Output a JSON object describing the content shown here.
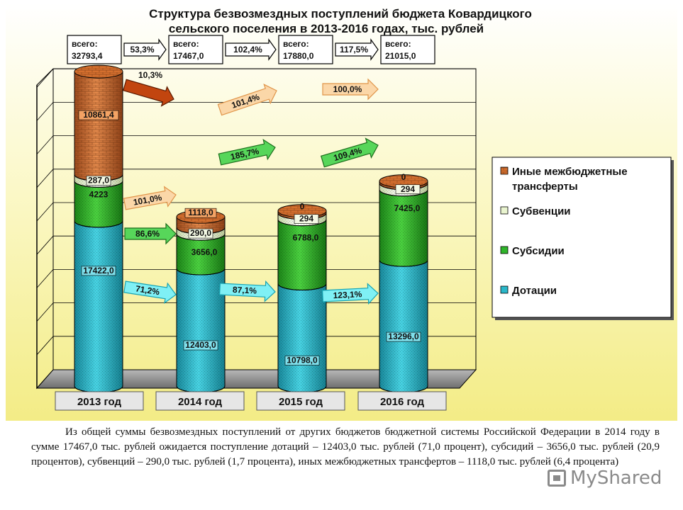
{
  "chart_data": {
    "type": "bar",
    "stacked": true,
    "title_line1": "Структура безвозмездных поступлений бюджета Ковардицкого",
    "title_line2": "сельского поселения в 2013-2016 годах, тыс. рублей",
    "categories": [
      "2013 год",
      "2014 год",
      "2015 год",
      "2016 год"
    ],
    "ylim": [
      0,
      35000
    ],
    "series": [
      {
        "name": "Дотации",
        "key": "dot",
        "values": [
          17422.0,
          12403.0,
          10798.0,
          13296.0
        ],
        "labels": [
          "17422,0",
          "12403,0",
          "10798,0",
          "13296,0"
        ],
        "color": "#2ab7c9"
      },
      {
        "name": "Субсидии",
        "key": "sub",
        "values": [
          4223,
          3656.0,
          6788.0,
          7425.0
        ],
        "labels": [
          "4223",
          "3656,0",
          "6788,0",
          "7425,0"
        ],
        "color": "#2fb52a"
      },
      {
        "name": "Субвенции",
        "key": "subv",
        "values": [
          287.0,
          290.0,
          294,
          294
        ],
        "labels": [
          "287,0",
          "290,0",
          "294",
          "294"
        ],
        "color": "#e9f4cf"
      },
      {
        "name": "Иные межбюджетные трансферты",
        "key": "other",
        "values": [
          10861.4,
          1118.0,
          0,
          0
        ],
        "labels": [
          "10861,4",
          "1118,0",
          "0",
          "0"
        ],
        "color": "#d46f2e"
      }
    ],
    "legend": {
      "position": "right",
      "entries": [
        "Иные межбюджетные",
        "трансферты",
        "Субвенции",
        "Субсидии",
        "Дотации"
      ]
    },
    "totals": [
      {
        "label": "всего:",
        "value": "32793,4"
      },
      {
        "label": "всего:",
        "value": "17467,0"
      },
      {
        "label": "всего:",
        "value": "17880,0"
      },
      {
        "label": "всего:",
        "value": "21015,0"
      }
    ],
    "total_growth": [
      "53,3%",
      "102,4%",
      "117,5%"
    ],
    "growth_arrows": {
      "other": [
        "10,3%"
      ],
      "subv": [
        "101,0%",
        "101,4%",
        "100,0%"
      ],
      "sub": [
        "86,6%",
        "185,7%",
        "109,4%"
      ],
      "dot": [
        "71,2%",
        "87,1%",
        "123,1%"
      ]
    },
    "colors": {
      "plot_bg_top": "#ffffff",
      "plot_bg_bottom": "#f4ee8a",
      "frame": "#000000"
    }
  },
  "caption": "Из общей суммы безвозмездных поступлений от других бюджетов бюджетной системы Российской Федерации в 2014 году в сумме 17467,0 тыс. рублей ожидается поступление дотаций – 12403,0 тыс. рублей (71,0 процент), субсидий – 3656,0 тыс. рублей (20,9 процентов), субвенций – 290,0 тыс. рублей (1,7 процента), иных межбюджетных трансфертов – 1118,0 тыс. рублей (6,4 процента)",
  "watermark": "MyShared"
}
